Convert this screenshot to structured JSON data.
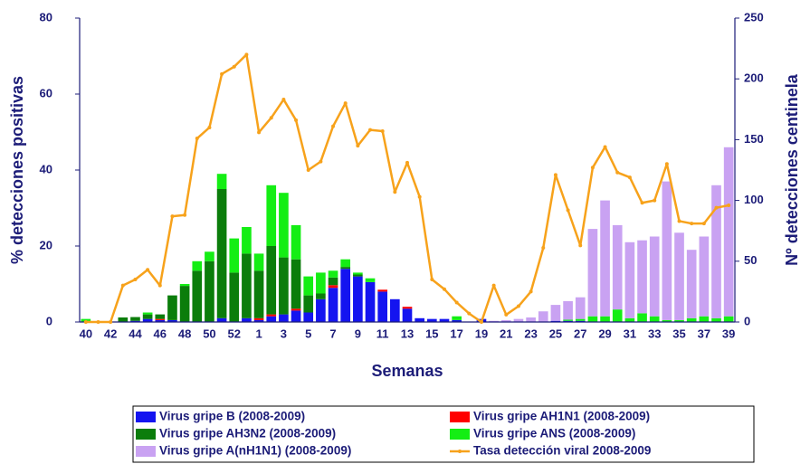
{
  "chart_data": {
    "type": "bar",
    "stacked": true,
    "x_label": "Semanas",
    "y_label": "% detecciones positivas",
    "y2_label": "Nº detecciones centinela",
    "categories": [
      "40",
      null,
      "42",
      null,
      "44",
      null,
      "46",
      null,
      "48",
      null,
      "50",
      null,
      "52",
      null,
      "1",
      null,
      "3",
      null,
      "5",
      null,
      "7",
      null,
      "9",
      null,
      "11",
      null,
      "13",
      null,
      "15",
      null,
      "17",
      null,
      "19",
      null,
      "21",
      null,
      "23",
      null,
      "25",
      null,
      "27",
      null,
      "29",
      null,
      "31",
      null,
      "33",
      null,
      "35",
      null,
      "37",
      null,
      "39"
    ],
    "ylim": [
      0,
      80
    ],
    "yticks": [
      0,
      20,
      40,
      60,
      80
    ],
    "y2lim": [
      0,
      250
    ],
    "y2ticks": [
      0,
      50,
      100,
      150,
      200,
      250
    ],
    "series": [
      {
        "name": "Virus gripe B (2008-2009)",
        "color": "#1414f0",
        "values": [
          0,
          0,
          0,
          0,
          0.3,
          0.8,
          0.5,
          0.5,
          0,
          0,
          0,
          1,
          0,
          1,
          0.5,
          1.5,
          2,
          3,
          2.5,
          6,
          9,
          14,
          12,
          10.5,
          8,
          6,
          3.5,
          1,
          0.8,
          0.8,
          0.5,
          0,
          0.8,
          0,
          0,
          0,
          0,
          0,
          0.3,
          0.3,
          0.3,
          0,
          0,
          0,
          0,
          0,
          0,
          0,
          0,
          0,
          0,
          0,
          0
        ]
      },
      {
        "name": "Virus gripe AH1N1 (2008-2009)",
        "color": "#ff0000",
        "values": [
          0,
          0,
          0,
          0,
          0,
          0,
          0.3,
          0,
          0,
          0,
          0,
          0,
          0,
          0,
          0.5,
          0.5,
          0,
          0.5,
          0,
          0,
          0.7,
          0,
          0,
          0,
          0.5,
          0,
          0.5,
          0,
          0,
          0,
          0,
          0,
          0,
          0,
          0,
          0,
          0,
          0,
          0,
          0,
          0,
          0,
          0,
          0,
          0,
          0,
          0,
          0,
          0,
          0,
          0,
          0,
          0
        ]
      },
      {
        "name": "Virus gripe AH3N2 (2008-2009)",
        "color": "#0b7d0b",
        "values": [
          0,
          0,
          0,
          1.2,
          1,
          1.2,
          1.2,
          6.5,
          9.5,
          13.5,
          16,
          34,
          13,
          17,
          12.5,
          18,
          15,
          13,
          4.5,
          1.5,
          2,
          0.5,
          0.5,
          0,
          0,
          0,
          0,
          0,
          0,
          0,
          0,
          0,
          0,
          0,
          0,
          0,
          0,
          0,
          0,
          0,
          0,
          0,
          0,
          0,
          0,
          0,
          0,
          0,
          0,
          0,
          0,
          0,
          0
        ]
      },
      {
        "name": "Virus gripe ANS (2008-2009)",
        "color": "#14ee14",
        "values": [
          0.8,
          0,
          0,
          0,
          0,
          0.5,
          0,
          0,
          0.5,
          2.5,
          2.5,
          4,
          9,
          7,
          4.5,
          16,
          17,
          9,
          5,
          5.5,
          1.8,
          2,
          0.5,
          1,
          0,
          0,
          0,
          0,
          0,
          0,
          1,
          0,
          0,
          0,
          0,
          0,
          0,
          0,
          0,
          0.3,
          0.5,
          1.5,
          1.5,
          3.3,
          1,
          2.3,
          1.5,
          0.5,
          0.5,
          1,
          1.5,
          1,
          1.5
        ]
      },
      {
        "name": "Virus gripe A(nH1N1)  (2008-2009)",
        "color": "#c9a2f2",
        "values": [
          0,
          0,
          0,
          0,
          0,
          0,
          0,
          0,
          0,
          0,
          0,
          0,
          0,
          0,
          0,
          0,
          0,
          0,
          0,
          0,
          0,
          0,
          0,
          0,
          0,
          0,
          0,
          0,
          0,
          0,
          0,
          0,
          0,
          0.3,
          0.5,
          0.8,
          1.2,
          2.8,
          4.2,
          4.9,
          5.7,
          23,
          30.5,
          22.2,
          20,
          19.2,
          21,
          36.5,
          23,
          18,
          21,
          35,
          44.5
        ]
      },
      {
        "name": "Tasa detección viral 2008-2009",
        "color": "#f7a21b",
        "type": "line",
        "axis": "y2",
        "values": [
          0,
          0,
          0,
          30,
          35,
          43,
          30,
          87,
          88,
          151,
          160,
          204,
          210,
          220,
          156,
          168,
          183,
          166,
          125,
          132,
          161,
          180,
          145,
          158,
          157,
          107,
          131,
          103,
          35,
          27,
          16,
          7,
          0,
          30,
          6,
          13,
          25,
          61,
          121,
          92,
          63,
          127,
          144,
          123,
          119,
          98,
          100,
          130,
          83,
          81,
          81,
          94,
          96
        ]
      }
    ]
  }
}
